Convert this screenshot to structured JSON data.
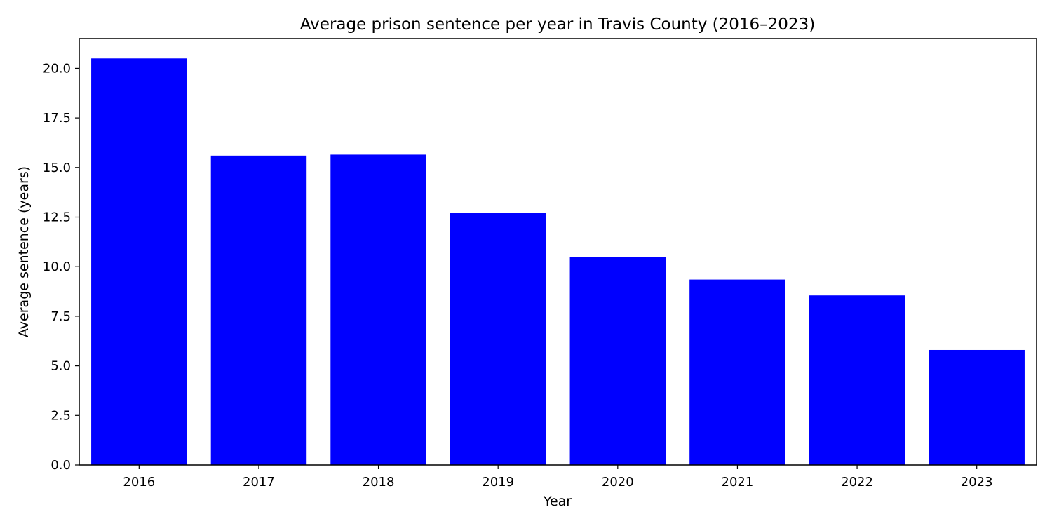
{
  "chart_data": {
    "type": "bar",
    "title": "Average prison sentence per year in Travis County (2016–2023)",
    "xlabel": "Year",
    "ylabel": "Average sentence (years)",
    "categories": [
      "2016",
      "2017",
      "2018",
      "2019",
      "2020",
      "2021",
      "2022",
      "2023"
    ],
    "values": [
      20.5,
      15.6,
      15.65,
      12.7,
      10.5,
      9.35,
      8.55,
      5.8
    ],
    "ylim": [
      0,
      21.5
    ],
    "yticks": [
      0.0,
      2.5,
      5.0,
      7.5,
      10.0,
      12.5,
      15.0,
      17.5,
      20.0
    ],
    "ytick_labels": [
      "0.0",
      "2.5",
      "5.0",
      "7.5",
      "10.0",
      "12.5",
      "15.0",
      "17.5",
      "20.0"
    ],
    "bar_color": "#0000ff",
    "grid": false,
    "legend": "none"
  }
}
